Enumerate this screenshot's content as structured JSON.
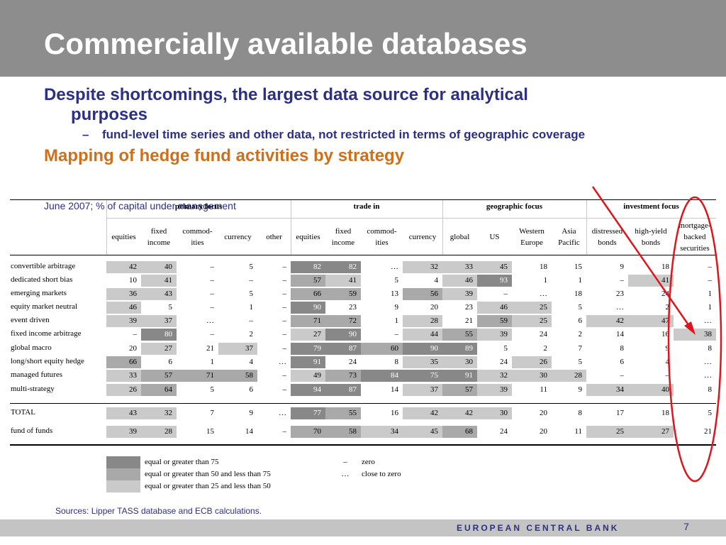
{
  "slide": {
    "title": "Commercially available databases",
    "bullet1": [
      "Despite shortcomings, the largest data source for analytical",
      "purposes"
    ],
    "bullet2_dash": "–",
    "bullet2": "fund-level time series and other data, not restricted in terms of geographic coverage",
    "chart_title": "Mapping of hedge fund activities by strategy",
    "subtitle": "June 2007; % of capital under management",
    "sources": "Sources: Lipper TASS database and ECB calculations.",
    "footer_brand": "EUROPEAN CENTRAL BANK",
    "page_number": "7"
  },
  "table": {
    "groups": [
      "primary focus",
      "trade in",
      "geographic focus",
      "investment focus"
    ],
    "columns": [
      "equities",
      "fixed\nincome",
      "commod-\nities",
      "currency",
      "other",
      "equities",
      "fixed\nincome",
      "commod-\nities",
      "currency",
      "global",
      "US",
      "Western\nEurope",
      "Asia\nPacific",
      "distressed\nbonds",
      "high-yield\nbonds",
      "mortgage-\nbacked\nsecurities"
    ],
    "rows": [
      {
        "label": "convertible arbitrage",
        "values": [
          "42",
          "40",
          "–",
          "5",
          "–",
          "82",
          "82",
          "…",
          "32",
          "33",
          "45",
          "18",
          "15",
          "9",
          "18",
          "–"
        ]
      },
      {
        "label": "dedicated short bias",
        "values": [
          "10",
          "41",
          "–",
          "–",
          "–",
          "57",
          "41",
          "5",
          "4",
          "46",
          "93",
          "1",
          "1",
          "–",
          "41",
          "–"
        ]
      },
      {
        "label": "emerging markets",
        "values": [
          "36",
          "43",
          "–",
          "5",
          "–",
          "66",
          "59",
          "13",
          "56",
          "39",
          "–",
          "…",
          "18",
          "23",
          "24",
          "1"
        ]
      },
      {
        "label": "equity market neutral",
        "values": [
          "46",
          "5",
          "–",
          "1",
          "–",
          "90",
          "23",
          "9",
          "20",
          "23",
          "46",
          "25",
          "5",
          "…",
          "2",
          "1"
        ]
      },
      {
        "label": "event driven",
        "values": [
          "39",
          "37",
          "…",
          "–",
          "–",
          "71",
          "72",
          "1",
          "28",
          "21",
          "59",
          "25",
          "6",
          "42",
          "47",
          "…"
        ]
      },
      {
        "label": "fixed income arbitrage",
        "values": [
          "–",
          "80",
          "–",
          "2",
          "–",
          "27",
          "90",
          "–",
          "44",
          "55",
          "39",
          "24",
          "2",
          "14",
          "16",
          "38"
        ]
      },
      {
        "label": "global macro",
        "values": [
          "20",
          "27",
          "21",
          "37",
          "–",
          "79",
          "87",
          "60",
          "90",
          "89",
          "5",
          "2",
          "7",
          "8",
          "9",
          "8"
        ]
      },
      {
        "label": "long/short equity hedge",
        "values": [
          "66",
          "6",
          "1",
          "4",
          "…",
          "91",
          "24",
          "8",
          "35",
          "30",
          "24",
          "26",
          "5",
          "6",
          "4",
          "…"
        ]
      },
      {
        "label": "managed futures",
        "values": [
          "33",
          "57",
          "71",
          "58",
          "–",
          "49",
          "73",
          "84",
          "75",
          "91",
          "32",
          "30",
          "28",
          "–",
          "–",
          "…"
        ]
      },
      {
        "label": "multi-strategy",
        "values": [
          "26",
          "64",
          "5",
          "6",
          "–",
          "94",
          "87",
          "14",
          "37",
          "57",
          "39",
          "11",
          "9",
          "34",
          "40",
          "8"
        ]
      }
    ],
    "totals": [
      {
        "label": "TOTAL",
        "values": [
          "43",
          "32",
          "7",
          "9",
          "…",
          "77",
          "55",
          "16",
          "42",
          "42",
          "30",
          "20",
          "8",
          "17",
          "18",
          "5"
        ]
      },
      {
        "label": "fund of funds",
        "values": [
          "39",
          "28",
          "15",
          "14",
          "–",
          "70",
          "58",
          "34",
          "45",
          "68",
          "24",
          "20",
          "11",
          "25",
          "27",
          "21"
        ]
      }
    ]
  },
  "legend": {
    "shades": [
      {
        "label": "equal or greater than 75",
        "color": "#888888"
      },
      {
        "label": "equal or greater than 50 and less than 75",
        "color": "#a9a9a9"
      },
      {
        "label": "equal or greater than 25 and less than 50",
        "color": "#cacaca"
      }
    ],
    "symbols": [
      {
        "symbol": "–",
        "meaning": "zero"
      },
      {
        "symbol": "…",
        "meaning": "close to zero"
      }
    ]
  },
  "annotation": {
    "color": "#e0141c"
  },
  "colors": {
    "title_bar": "#8d8d8d",
    "text_blue": "#2c3083",
    "orange": "#cf6f1a"
  }
}
